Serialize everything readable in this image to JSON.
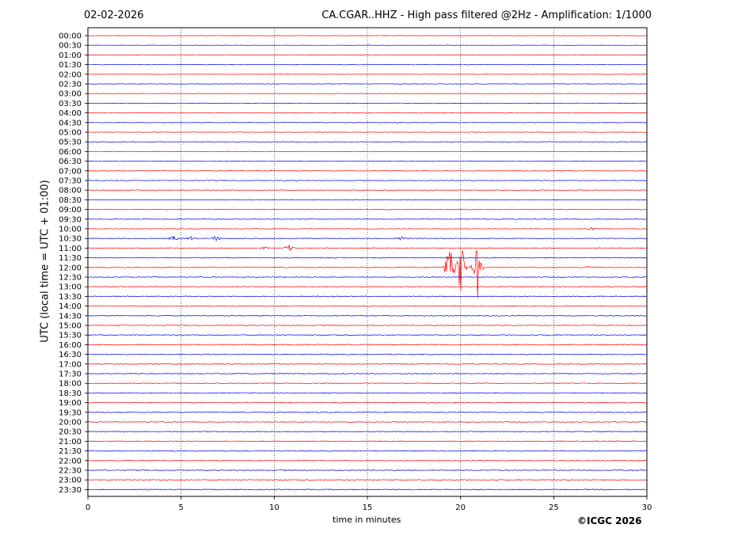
{
  "header": {
    "date": "02-02-2026",
    "station_title": "CA.CGAR..HHZ - High pass filtered @2Hz - Amplification: 1/1000"
  },
  "footer": {
    "copyright": "©ICGC 2026"
  },
  "chart_data": {
    "type": "line",
    "title": "CA.CGAR..HHZ - High pass filtered @2Hz - Amplification: 1/1000",
    "xlabel": "time in minutes",
    "ylabel": "UTC (local time = UTC + 01:00)",
    "xlim": [
      0,
      30
    ],
    "xticks": [
      0,
      5,
      10,
      15,
      20,
      25,
      30
    ],
    "grid_x": true,
    "rows": [
      "00:00",
      "00:30",
      "01:00",
      "01:30",
      "02:00",
      "02:30",
      "03:00",
      "03:30",
      "04:00",
      "04:30",
      "05:00",
      "05:30",
      "06:00",
      "06:30",
      "07:00",
      "07:30",
      "08:00",
      "08:30",
      "09:00",
      "09:30",
      "10:00",
      "10:30",
      "11:00",
      "11:30",
      "12:00",
      "12:30",
      "13:00",
      "13:30",
      "14:00",
      "14:30",
      "15:00",
      "15:30",
      "16:00",
      "16:30",
      "17:00",
      "17:30",
      "18:00",
      "18:30",
      "19:00",
      "19:30",
      "20:00",
      "20:30",
      "21:00",
      "21:30",
      "22:00",
      "22:30",
      "23:00",
      "23:30"
    ],
    "trace_colors": [
      "#ff0000",
      "#0000ff"
    ],
    "events": [
      {
        "row": "10:30",
        "minute": 4.6,
        "amplitude": 0.35
      },
      {
        "row": "10:30",
        "minute": 5.5,
        "amplitude": 0.3
      },
      {
        "row": "10:30",
        "minute": 6.9,
        "amplitude": 0.4
      },
      {
        "row": "10:30",
        "minute": 16.8,
        "amplitude": 0.3
      },
      {
        "row": "11:00",
        "minute": 10.8,
        "amplitude": 0.45
      },
      {
        "row": "11:00",
        "minute": 9.5,
        "amplitude": 0.2
      },
      {
        "row": "12:00",
        "minute": 19.4,
        "amplitude": 4.2
      },
      {
        "row": "12:00",
        "minute": 20.0,
        "amplitude": 5.2
      },
      {
        "row": "12:00",
        "minute": 20.9,
        "amplitude": 3.6
      },
      {
        "row": "12:00",
        "minute": 26.8,
        "amplitude": 0.3
      },
      {
        "row": "10:00",
        "minute": 27.0,
        "amplitude": 0.3
      }
    ]
  }
}
